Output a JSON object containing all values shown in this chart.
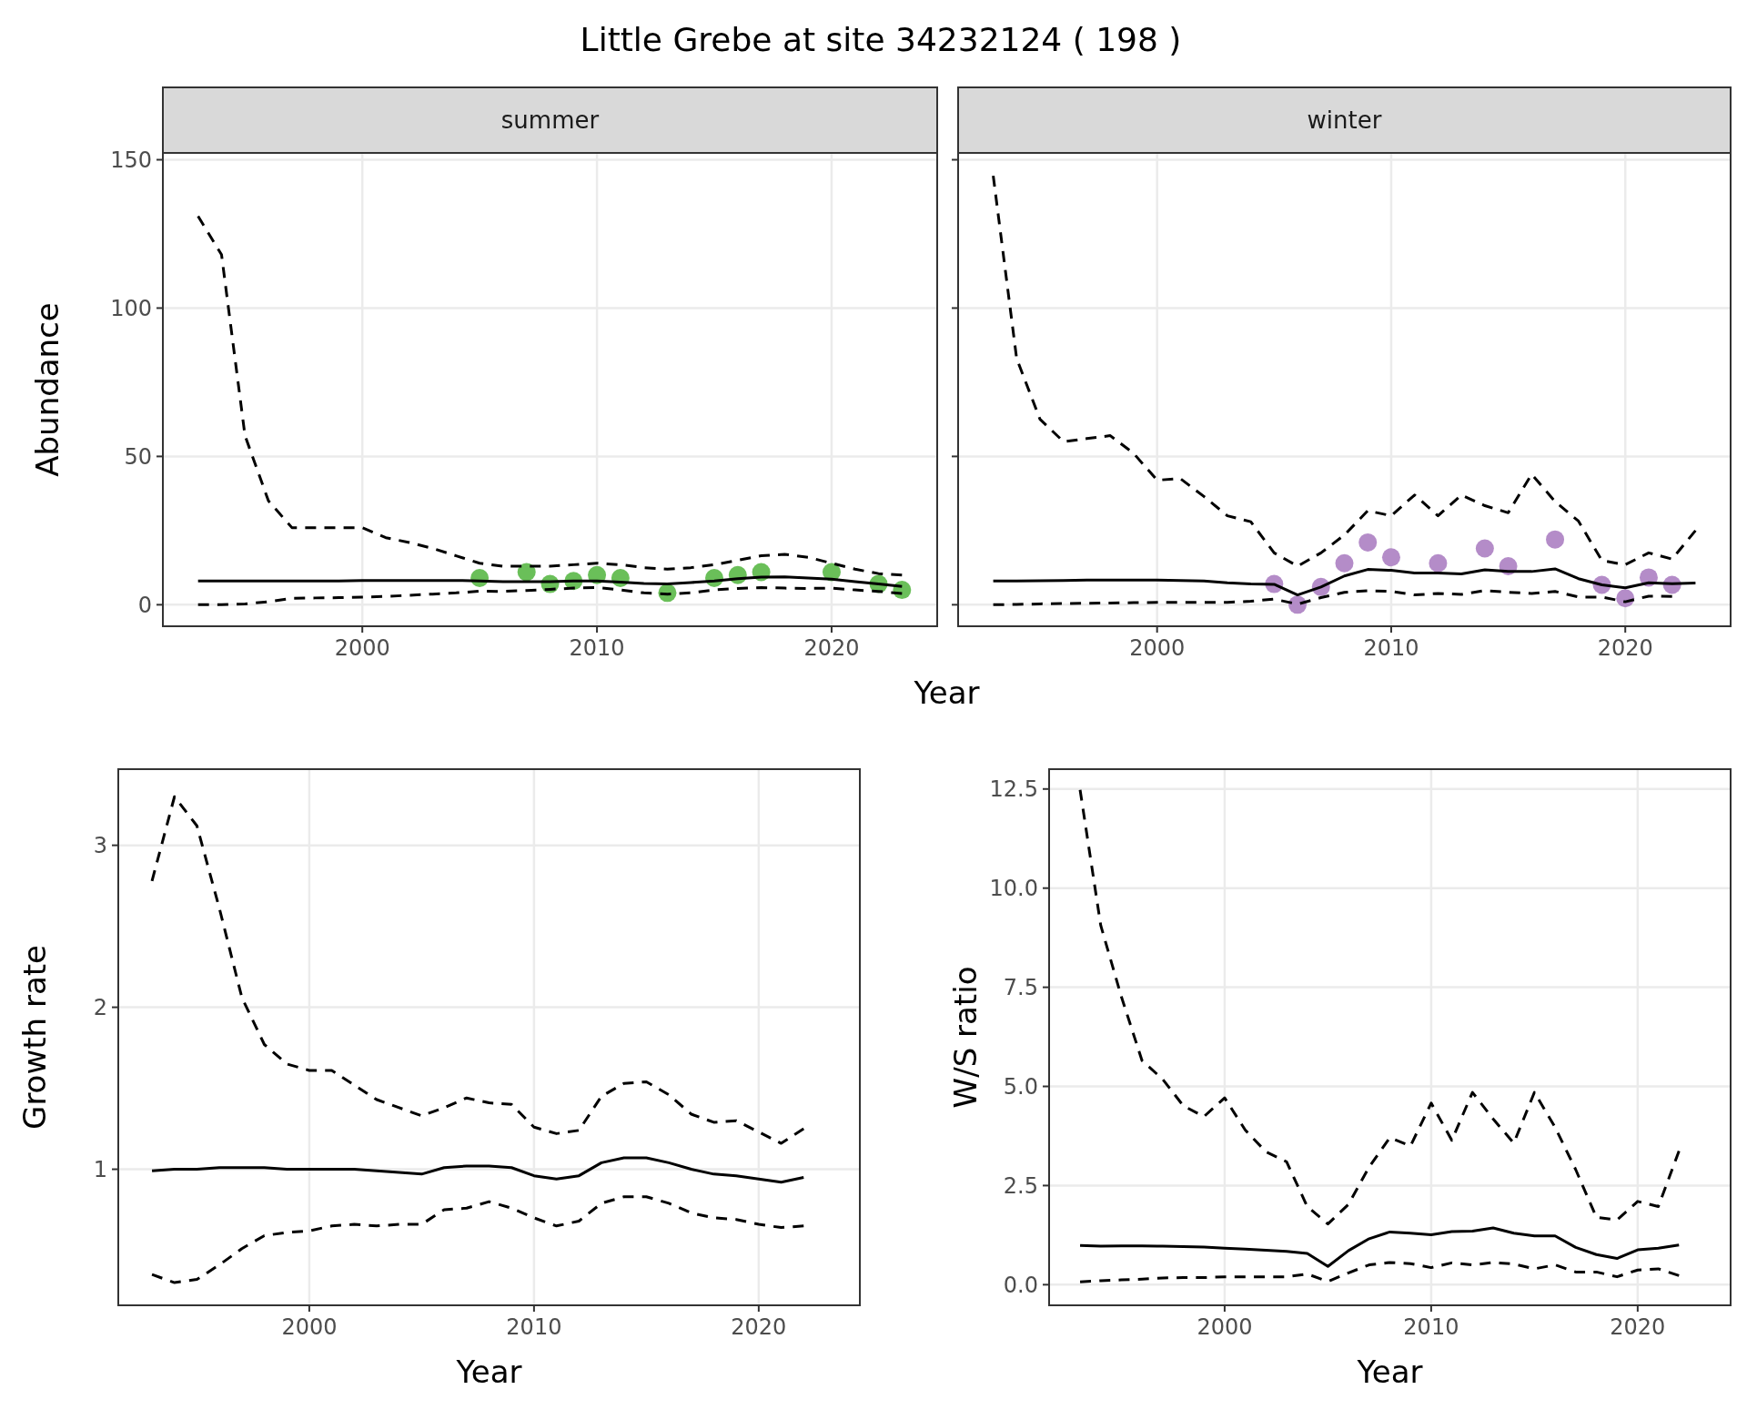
{
  "chart_data": [
    {
      "type": "line",
      "title": "Little Grebe at site 34232124 ( 198 )",
      "subtitle": "summer",
      "xlabel": "Year",
      "ylabel": "Abundance",
      "x": [
        1993,
        1994,
        1995,
        1996,
        1997,
        1998,
        1999,
        2000,
        2001,
        2002,
        2003,
        2004,
        2005,
        2006,
        2007,
        2008,
        2009,
        2010,
        2011,
        2012,
        2013,
        2014,
        2015,
        2016,
        2017,
        2018,
        2019,
        2020,
        2021,
        2022,
        2023
      ],
      "xlim": [
        1991.5,
        2024.5
      ],
      "xticks": [
        2000,
        2010,
        2020
      ],
      "ylim": [
        -7.25,
        152.3
      ],
      "yticks": [
        0,
        50,
        100,
        150
      ],
      "grid": true,
      "series": [
        {
          "type": "line",
          "color": "#000000",
          "line_style": "solid",
          "values": [
            8,
            8,
            8,
            8,
            8,
            8,
            8,
            8.2,
            8.2,
            8.2,
            8.2,
            8.2,
            8,
            7.8,
            7.8,
            7.8,
            8,
            8,
            7.6,
            7.2,
            7,
            7.5,
            8,
            8.8,
            9.3,
            9.4,
            9,
            8.6,
            7.8,
            7,
            6.2
          ]
        },
        {
          "type": "line",
          "color": "#000000",
          "line_style": "dashed",
          "values": [
            0,
            0,
            0.3,
            1,
            2.2,
            2.3,
            2.4,
            2.6,
            2.8,
            3.2,
            3.6,
            4,
            4.6,
            4.5,
            4.8,
            5.2,
            5.6,
            5.8,
            5,
            4,
            3.6,
            4,
            5,
            5.5,
            5.8,
            5.6,
            5.5,
            5.6,
            5,
            4.5,
            3.8
          ]
        },
        {
          "type": "line",
          "color": "#000000",
          "line_style": "dashed",
          "values": [
            131,
            118,
            57,
            35,
            26,
            26,
            26,
            26,
            22.6,
            21,
            19,
            16.5,
            14,
            13,
            13,
            13,
            13.5,
            14,
            13.5,
            12.5,
            12,
            12.5,
            13.5,
            15,
            16.5,
            17,
            16,
            14,
            12,
            10.5,
            10
          ]
        },
        {
          "type": "scatter",
          "color": "#6abf59",
          "marker": "circle",
          "x": [
            2005,
            2007,
            2008,
            2009,
            2010,
            2011,
            2013,
            2015,
            2016,
            2017,
            2020,
            2022,
            2023
          ],
          "values": [
            9,
            11,
            7,
            8,
            10,
            9,
            4,
            9,
            10,
            11,
            11,
            7,
            5
          ]
        }
      ]
    },
    {
      "type": "line",
      "subtitle": "winter",
      "x": [
        1993,
        1994,
        1995,
        1996,
        1997,
        1998,
        1999,
        2000,
        2001,
        2002,
        2003,
        2004,
        2005,
        2006,
        2007,
        2008,
        2009,
        2010,
        2011,
        2012,
        2013,
        2014,
        2015,
        2016,
        2017,
        2018,
        2019,
        2020,
        2021,
        2022,
        2023
      ],
      "xlim": [
        1991.5,
        2024.5
      ],
      "xticks": [
        2000,
        2010,
        2020
      ],
      "ylim": [
        -7.25,
        152.3
      ],
      "yticks": [
        0,
        50,
        100,
        150
      ],
      "grid": true,
      "tick_labels": "x",
      "series": [
        {
          "type": "line",
          "color": "#000000",
          "line_style": "solid",
          "values": [
            8,
            8,
            8.1,
            8.2,
            8.3,
            8.3,
            8.3,
            8.3,
            8.2,
            8,
            7.4,
            7,
            6.9,
            3.3,
            6,
            9.7,
            11.9,
            11.6,
            10.7,
            10.7,
            10.4,
            11.8,
            11.2,
            11.2,
            12.1,
            8.8,
            6.7,
            5.7,
            7.4,
            7.1,
            7.3
          ]
        },
        {
          "type": "line",
          "color": "#000000",
          "line_style": "dashed",
          "values": [
            0,
            0.1,
            0.3,
            0.4,
            0.5,
            0.6,
            0.7,
            0.8,
            0.8,
            0.8,
            0.8,
            1.2,
            1.9,
            0.2,
            2.4,
            4.2,
            4.7,
            4.5,
            3.3,
            3.8,
            3.5,
            4.8,
            4.2,
            3.8,
            4.5,
            2.6,
            2.6,
            1,
            2.9,
            2.8,
            null
          ]
        },
        {
          "type": "line",
          "color": "#000000",
          "line_style": "dashed",
          "values": [
            144.6,
            83,
            62.5,
            55,
            56,
            57,
            51,
            42,
            42.5,
            36.5,
            30,
            28,
            17.5,
            13,
            17.5,
            23.5,
            31.7,
            30,
            37,
            30,
            37,
            33.4,
            31,
            44,
            34.8,
            28.2,
            14.9,
            13.5,
            17.5,
            15.4,
            25
          ]
        },
        {
          "type": "scatter",
          "color": "#b48cc8",
          "marker": "circle",
          "x": [
            2005,
            2006,
            2007,
            2008,
            2009,
            2010,
            2012,
            2014,
            2015,
            2017,
            2019,
            2020,
            2021,
            2022
          ],
          "values": [
            7,
            0,
            6,
            14,
            21,
            16,
            14,
            19,
            13,
            22,
            6.7,
            2.2,
            9.2,
            6.7
          ]
        }
      ]
    },
    {
      "type": "line",
      "xlabel": "Year",
      "ylabel": "Growth rate",
      "x": [
        1993,
        1994,
        1995,
        1996,
        1997,
        1998,
        1999,
        2000,
        2001,
        2002,
        2003,
        2004,
        2005,
        2006,
        2007,
        2008,
        2009,
        2010,
        2011,
        2012,
        2013,
        2014,
        2015,
        2016,
        2017,
        2018,
        2019,
        2020,
        2021,
        2022
      ],
      "xlim": [
        1991.5,
        2024.5
      ],
      "xticks": [
        2000,
        2010,
        2020
      ],
      "ylim": [
        0.16,
        3.47
      ],
      "yticks": [
        1,
        2,
        3
      ],
      "grid": true,
      "series": [
        {
          "type": "line",
          "color": "#000000",
          "line_style": "solid",
          "values": [
            0.99,
            1,
            1,
            1.01,
            1.01,
            1.01,
            1,
            1,
            1,
            1,
            0.99,
            0.98,
            0.97,
            1.01,
            1.02,
            1.02,
            1.01,
            0.96,
            0.94,
            0.96,
            1.04,
            1.07,
            1.07,
            1.04,
            1,
            0.97,
            0.96,
            0.94,
            0.92,
            0.95
          ]
        },
        {
          "type": "line",
          "color": "#000000",
          "line_style": "dashed",
          "values": [
            0.35,
            0.3,
            0.32,
            0.41,
            0.51,
            0.59,
            0.61,
            0.62,
            0.65,
            0.66,
            0.65,
            0.66,
            0.66,
            0.75,
            0.76,
            0.8,
            0.76,
            0.7,
            0.65,
            0.68,
            0.79,
            0.83,
            0.83,
            0.79,
            0.73,
            0.7,
            0.69,
            0.66,
            0.64,
            0.65
          ]
        },
        {
          "type": "line",
          "color": "#000000",
          "line_style": "dashed",
          "values": [
            2.78,
            3.3,
            3.12,
            2.61,
            2.06,
            1.77,
            1.65,
            1.61,
            1.61,
            1.52,
            1.43,
            1.38,
            1.33,
            1.38,
            1.44,
            1.41,
            1.4,
            1.26,
            1.22,
            1.24,
            1.45,
            1.53,
            1.54,
            1.46,
            1.34,
            1.29,
            1.3,
            1.23,
            1.16,
            1.25
          ]
        }
      ]
    },
    {
      "type": "line",
      "xlabel": "Year",
      "ylabel": "W/S ratio",
      "x": [
        1993,
        1994,
        1995,
        1996,
        1997,
        1998,
        1999,
        2000,
        2001,
        2002,
        2003,
        2004,
        2005,
        2006,
        2007,
        2008,
        2009,
        2010,
        2011,
        2012,
        2013,
        2014,
        2015,
        2016,
        2017,
        2018,
        2019,
        2020,
        2021,
        2022
      ],
      "xlim": [
        1991.5,
        2024.5
      ],
      "xticks": [
        2000,
        2010,
        2020
      ],
      "ylim": [
        -0.52,
        13
      ],
      "yticks": [
        {
          "value": 0,
          "label": "0.0"
        },
        {
          "value": 2.5,
          "label": "2.5"
        },
        {
          "value": 5,
          "label": "5.0"
        },
        {
          "value": 7.5,
          "label": "7.5"
        },
        {
          "value": 10,
          "label": "10.0"
        },
        12.5
      ],
      "grid": true,
      "series": [
        {
          "type": "line",
          "color": "#000000",
          "line_style": "solid",
          "values": [
            0.99,
            0.97,
            0.98,
            0.98,
            0.97,
            0.96,
            0.95,
            0.92,
            0.9,
            0.87,
            0.84,
            0.79,
            0.46,
            0.86,
            1.16,
            1.33,
            1.3,
            1.26,
            1.34,
            1.35,
            1.43,
            1.3,
            1.23,
            1.23,
            0.94,
            0.76,
            0.66,
            0.88,
            0.92,
            1
          ]
        },
        {
          "type": "line",
          "color": "#000000",
          "line_style": "dashed",
          "values": [
            0.07,
            0.1,
            0.12,
            0.14,
            0.17,
            0.18,
            0.18,
            0.2,
            0.2,
            0.2,
            0.2,
            0.27,
            0.08,
            0.3,
            0.5,
            0.56,
            0.53,
            0.43,
            0.55,
            0.5,
            0.56,
            0.52,
            0.4,
            0.5,
            0.32,
            0.32,
            0.2,
            0.37,
            0.4,
            0.23
          ]
        },
        {
          "type": "line",
          "color": "#000000",
          "line_style": "dashed",
          "values": [
            12.48,
            9.06,
            7.26,
            5.65,
            5.18,
            4.51,
            4.24,
            4.71,
            3.9,
            3.35,
            3.1,
            1.97,
            1.53,
            2.03,
            2.97,
            3.71,
            3.5,
            4.58,
            3.64,
            4.85,
            4.18,
            3.57,
            4.85,
            3.97,
            2.9,
            1.7,
            1.63,
            2.1,
            1.97,
            3.37
          ]
        }
      ]
    }
  ]
}
